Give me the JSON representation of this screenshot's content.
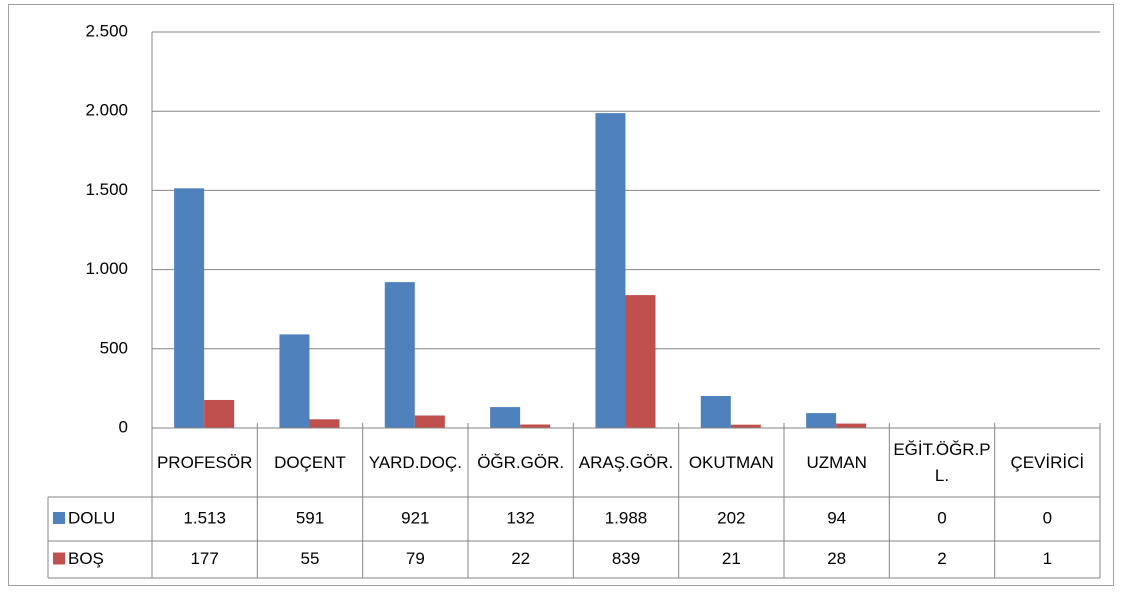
{
  "chart_data": {
    "type": "bar",
    "categories": [
      "PROFESÖR",
      "DOÇENT",
      "YARD.DOÇ.",
      "ÖĞR.GÖR.",
      "ARAŞ.GÖR.",
      "OKUTMAN",
      "UZMAN",
      "EĞİT.ÖĞR.PL.",
      "ÇEVİRİCİ"
    ],
    "series": [
      {
        "name": "DOLU",
        "color": "#4f81bd",
        "values": [
          1513,
          591,
          921,
          132,
          1988,
          202,
          94,
          0,
          0
        ],
        "value_labels": [
          "1.513",
          "591",
          "921",
          "132",
          "1.988",
          "202",
          "94",
          "0",
          "0"
        ]
      },
      {
        "name": "BOŞ",
        "color": "#c0504d",
        "values": [
          177,
          55,
          79,
          22,
          839,
          21,
          28,
          2,
          1
        ],
        "value_labels": [
          "177",
          "55",
          "79",
          "22",
          "839",
          "21",
          "28",
          "2",
          "1"
        ]
      }
    ],
    "ylim": [
      0,
      2500
    ],
    "yticks": [
      0,
      500,
      {
        "value": 1000,
        "label": "1.000"
      },
      {
        "value": 1500,
        "label": "1.500"
      },
      {
        "value": 2000,
        "label": "2.000"
      },
      {
        "value": 2500,
        "label": "2.500"
      }
    ],
    "grid": true
  }
}
